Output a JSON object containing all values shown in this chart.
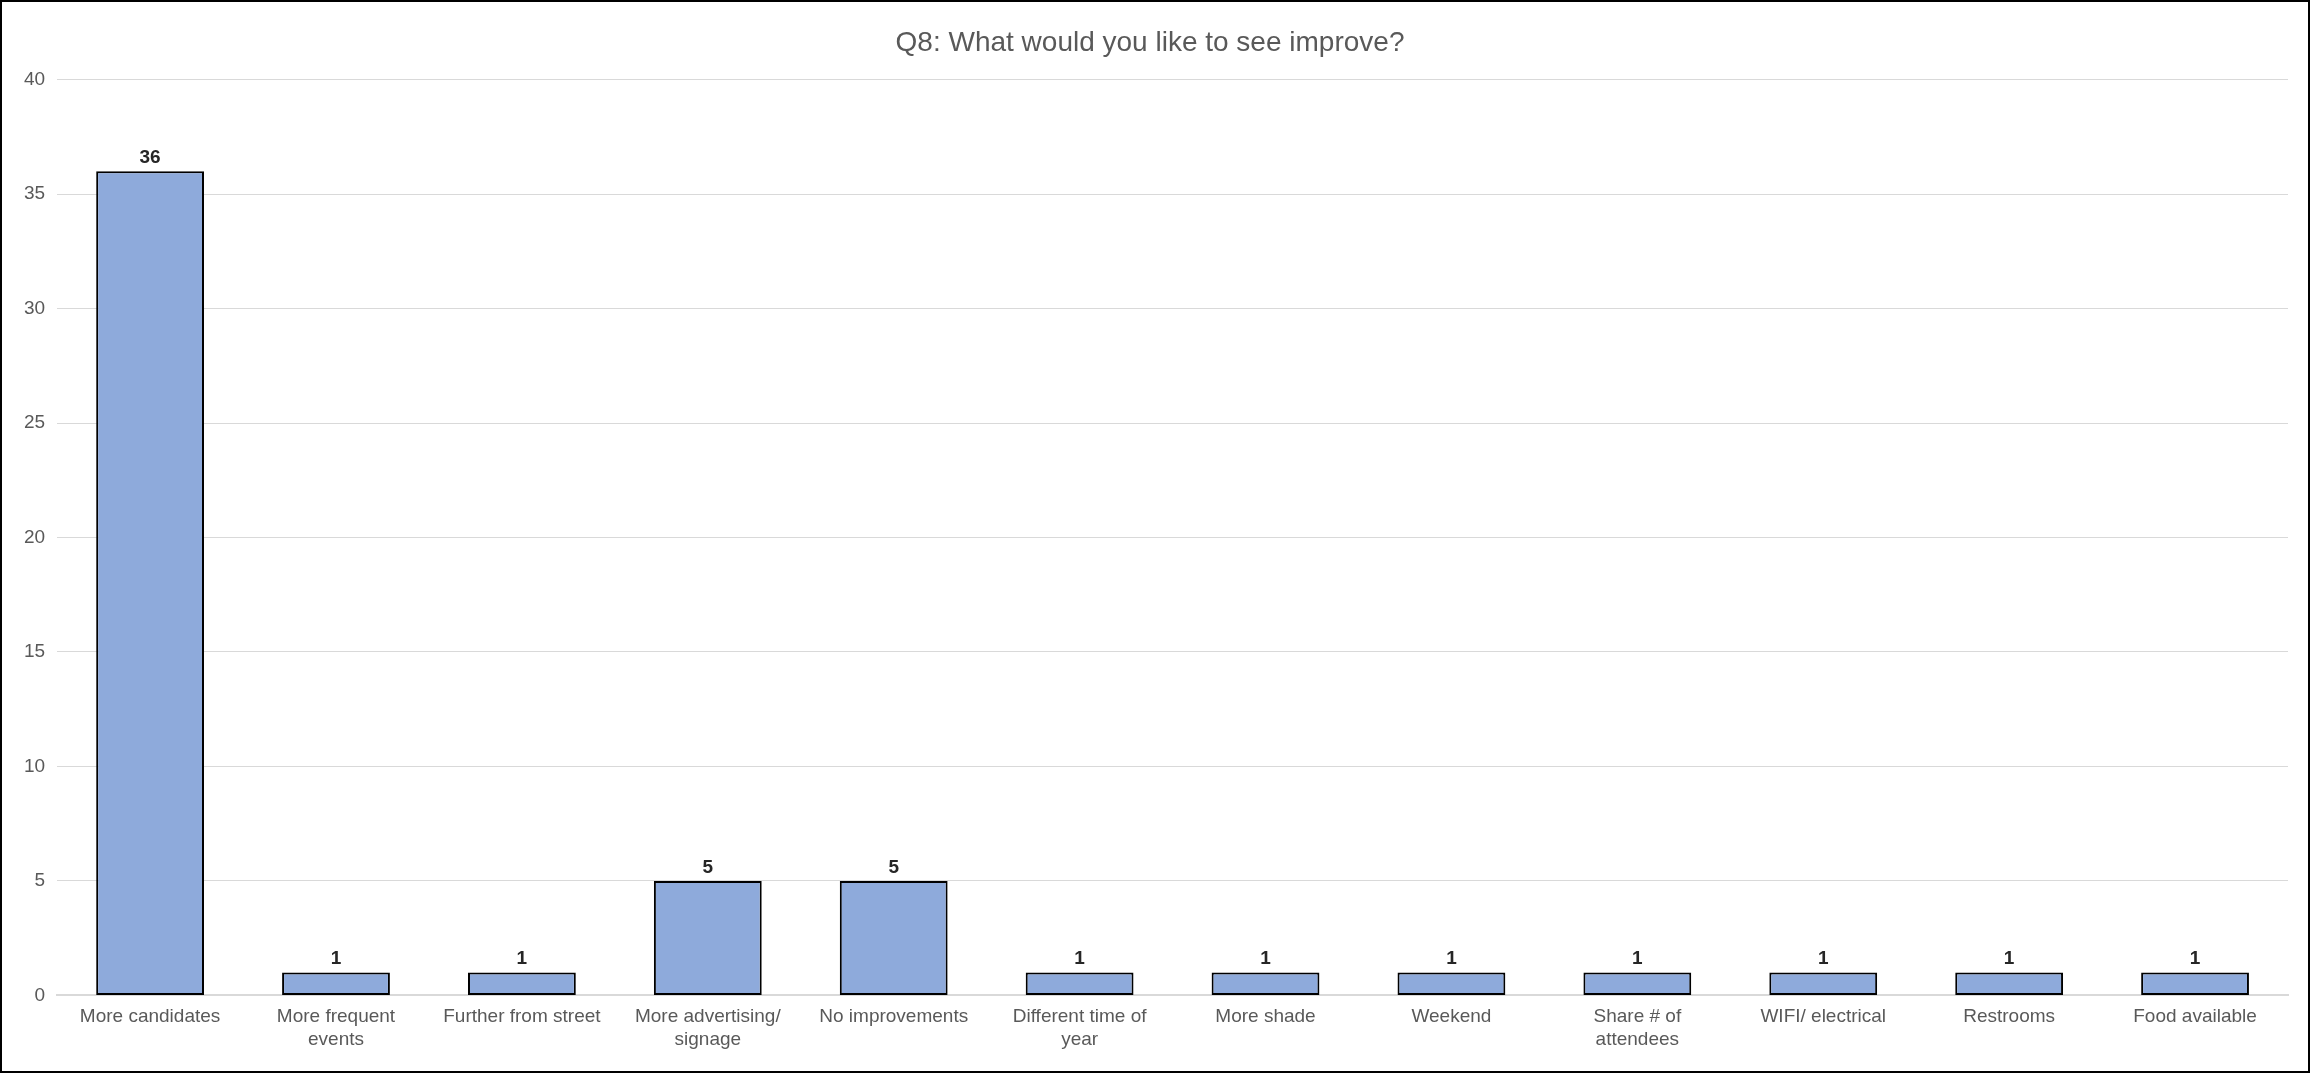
{
  "chart_data": {
    "type": "bar",
    "title": "Q8: What would you like to see improve?",
    "categories": [
      "More candidates",
      "More frequent events",
      "Further from street",
      "More advertising/ signage",
      "No improvements",
      "Different time of year",
      "More shade",
      "Weekend",
      "Share # of attendees",
      "WIFI/ electrical",
      "Restrooms",
      "Food available"
    ],
    "values": [
      36,
      1,
      1,
      5,
      5,
      1,
      1,
      1,
      1,
      1,
      1,
      1
    ],
    "color": "#8eaadb",
    "ylim": [
      0,
      40
    ],
    "yticks": [
      0,
      5,
      10,
      15,
      20,
      25,
      30,
      35,
      40
    ],
    "grid": "y",
    "legend": false,
    "data_labels": true
  }
}
